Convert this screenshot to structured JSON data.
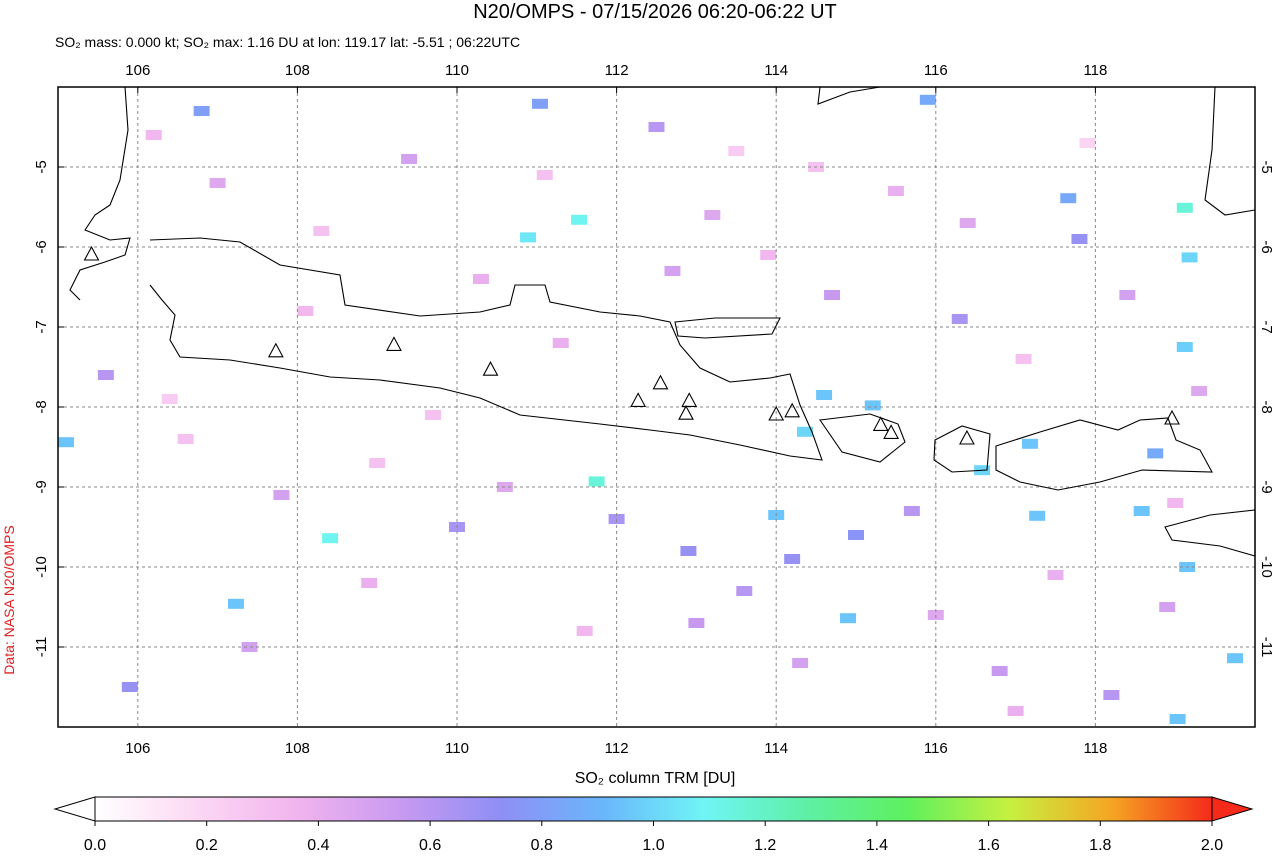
{
  "chart_data": {
    "type": "map",
    "title": "N20/OMPS - 07/15/2026 06:20-06:22 UT",
    "subtitle": "SO₂ mass: 0.000 kt; SO₂ max: 1.16 DU at lon: 119.17 lat: -5.51 ; 06:22UTC",
    "credit": "Data: NASA N20/OMPS",
    "xlim": [
      105,
      120
    ],
    "ylim": [
      -12,
      -4
    ],
    "xticks": [
      106,
      108,
      110,
      112,
      114,
      116,
      118
    ],
    "yticks": [
      -5,
      -6,
      -7,
      -8,
      -9,
      -10,
      -11
    ],
    "grid": true,
    "pixels": {
      "lon": [
        119.12,
        119.18,
        119.12,
        111.53,
        110.89,
        111.75,
        108.41,
        117.66,
        114.6,
        115.21,
        114.36,
        116.58,
        117.18,
        117.27,
        118.58,
        119.15,
        119.03,
        119.75,
        114.9,
        107.23,
        105.1,
        114.0,
        106.8,
        111.04,
        115.9,
        118.75,
        106.2,
        107.0,
        108.3,
        109.4,
        110.3,
        111.1,
        112.5,
        113.2,
        113.9,
        114.7,
        115.5,
        116.3,
        117.1,
        117.8,
        118.4,
        119.3,
        105.6,
        106.6,
        107.8,
        108.9,
        110.0,
        111.6,
        112.9,
        113.6,
        114.3,
        115.0,
        116.0,
        116.8,
        117.5,
        118.2,
        119.0,
        105.9,
        107.4,
        109.0,
        110.6,
        112.0,
        113.0,
        114.2,
        115.7,
        117.0,
        118.9,
        106.4,
        108.1,
        109.7,
        111.3,
        112.7,
        113.5,
        114.5,
        116.4,
        117.9
      ],
      "lat": [
        -5.51,
        -6.13,
        -7.25,
        -5.66,
        -5.88,
        -8.93,
        -9.64,
        -5.39,
        -7.85,
        -7.98,
        -8.31,
        -8.79,
        -8.46,
        -9.36,
        -9.3,
        -10.0,
        -11.9,
        -11.14,
        -10.64,
        -10.46,
        -8.44,
        -9.35,
        -4.3,
        -4.21,
        -4.16,
        -8.58,
        -4.6,
        -5.2,
        -5.8,
        -4.9,
        -6.4,
        -5.1,
        -4.5,
        -5.6,
        -6.1,
        -6.6,
        -5.3,
        -6.9,
        -7.4,
        -5.9,
        -6.6,
        -7.8,
        -7.6,
        -8.4,
        -9.1,
        -10.2,
        -9.5,
        -10.8,
        -9.8,
        -10.3,
        -11.2,
        -9.6,
        -10.6,
        -11.3,
        -10.1,
        -11.6,
        -9.2,
        -11.5,
        -11.0,
        -8.7,
        -9.0,
        -9.4,
        -10.7,
        -9.9,
        -9.3,
        -11.8,
        -10.5,
        -7.9,
        -6.8,
        -8.1,
        -7.2,
        -6.3,
        -4.8,
        -5.0,
        -5.7,
        -4.7
      ],
      "values": [
        1.16,
        1.0,
        0.98,
        1.1,
        1.05,
        1.15,
        1.1,
        0.85,
        0.95,
        0.95,
        1.0,
        1.0,
        0.95,
        0.95,
        0.95,
        0.95,
        0.95,
        0.95,
        0.95,
        0.95,
        0.95,
        0.95,
        0.8,
        0.8,
        0.85,
        0.85,
        0.35,
        0.45,
        0.3,
        0.5,
        0.4,
        0.3,
        0.6,
        0.45,
        0.35,
        0.55,
        0.4,
        0.65,
        0.3,
        0.7,
        0.5,
        0.45,
        0.6,
        0.3,
        0.5,
        0.4,
        0.65,
        0.35,
        0.7,
        0.6,
        0.5,
        0.75,
        0.45,
        0.55,
        0.4,
        0.6,
        0.35,
        0.7,
        0.5,
        0.3,
        0.45,
        0.65,
        0.55,
        0.7,
        0.6,
        0.4,
        0.5,
        0.25,
        0.35,
        0.3,
        0.4,
        0.5,
        0.25,
        0.3,
        0.45,
        0.2
      ]
    },
    "volcanoes": {
      "lon": [
        105.42,
        107.73,
        109.21,
        110.42,
        112.27,
        112.55,
        112.91,
        112.87,
        114.0,
        114.2,
        115.31,
        115.44,
        116.39,
        118.96
      ],
      "lat": [
        -6.1,
        -7.31,
        -7.23,
        -7.54,
        -7.93,
        -7.71,
        -7.93,
        -8.09,
        -8.1,
        -8.06,
        -8.23,
        -8.33,
        -8.4,
        -8.15
      ]
    },
    "colorbar": {
      "label": "SO₂ column TRM [DU]",
      "colors": [
        "#ffffff",
        "#fcd8f4",
        "#f1b4ee",
        "#c89af0",
        "#8f8ff5",
        "#6ab6fb",
        "#6ff5f5",
        "#5ef0a6",
        "#5ef05e",
        "#c6f040",
        "#f5a623",
        "#f52a1a"
      ],
      "ticks": [
        {
          "value": 0,
          "label": "0.0"
        },
        {
          "value": 0.2,
          "label": "0.2"
        },
        {
          "value": 0.4,
          "label": "0.4"
        },
        {
          "value": 0.6,
          "label": "0.6"
        },
        {
          "value": 0.8,
          "label": "0.8"
        },
        {
          "value": 1.0,
          "label": "1.0"
        },
        {
          "value": 1.2,
          "label": "1.2"
        },
        {
          "value": 1.4,
          "label": "1.4"
        },
        {
          "value": 1.6,
          "label": "1.6"
        },
        {
          "value": 1.8,
          "label": "1.8"
        },
        {
          "value": 2.0,
          "label": "2.0"
        }
      ],
      "lim": [
        0,
        2
      ]
    }
  }
}
